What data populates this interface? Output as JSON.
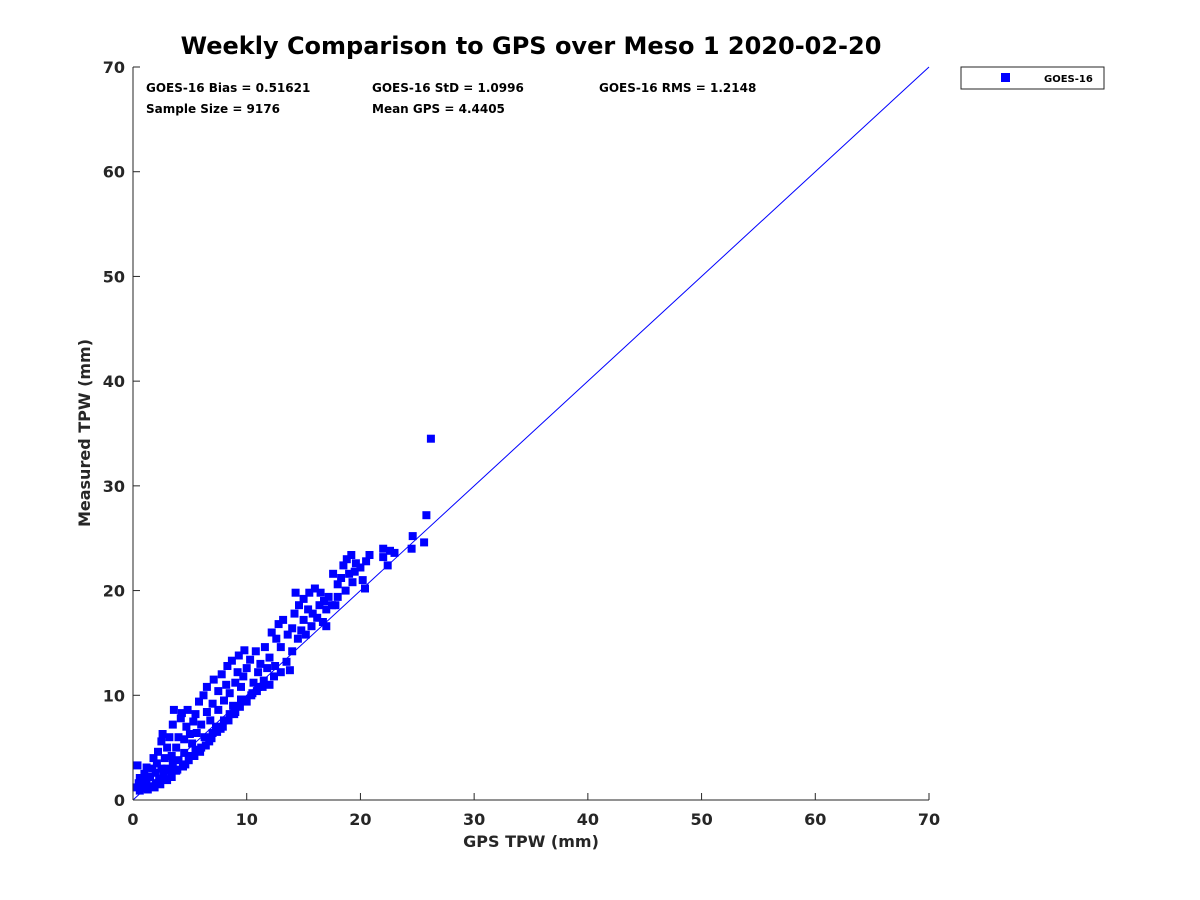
{
  "colors": {
    "marker": "#0000ff",
    "one_to_one_line": "#0000ff",
    "axis": "#262626",
    "background": "#ffffff"
  },
  "chart_data": {
    "type": "scatter",
    "title": "Weekly Comparison to GPS over Meso 1 2020-02-20",
    "xlabel": "GPS TPW (mm)",
    "ylabel": "Measured TPW (mm)",
    "xlim": [
      0,
      70
    ],
    "ylim": [
      0,
      70
    ],
    "xticks": [
      0,
      10,
      20,
      30,
      40,
      50,
      60,
      70
    ],
    "yticks": [
      0,
      10,
      20,
      30,
      40,
      50,
      60,
      70
    ],
    "grid": false,
    "legend_position": "outside-top-right",
    "reference_line": {
      "name": "1:1 line",
      "x": [
        0,
        70
      ],
      "y": [
        0,
        70
      ]
    },
    "stats": {
      "bias": "GOES-16 Bias = 0.51621",
      "std": "GOES-16 StD = 1.0996",
      "rms": "GOES-16 RMS = 1.2148",
      "sample_size": "Sample Size = 9176",
      "mean_gps": "Mean GPS = 4.4405"
    },
    "series": [
      {
        "name": "GOES-16",
        "marker": "square",
        "points": [
          [
            0.3,
            1.2
          ],
          [
            0.5,
            1.6
          ],
          [
            0.6,
            2.1
          ],
          [
            0.8,
            1.4
          ],
          [
            1.0,
            1.1
          ],
          [
            1.0,
            2.5
          ],
          [
            1.2,
            1.8
          ],
          [
            1.2,
            3.1
          ],
          [
            0.4,
            3.3
          ],
          [
            1.5,
            2.2
          ],
          [
            1.6,
            1.3
          ],
          [
            1.7,
            3.0
          ],
          [
            1.8,
            4.0
          ],
          [
            2.0,
            1.6
          ],
          [
            2.0,
            2.6
          ],
          [
            2.1,
            3.5
          ],
          [
            2.2,
            4.6
          ],
          [
            2.3,
            1.9
          ],
          [
            2.5,
            3.0
          ],
          [
            2.5,
            5.6
          ],
          [
            2.6,
            6.3
          ],
          [
            2.7,
            2.5
          ],
          [
            2.8,
            4.0
          ],
          [
            3.0,
            1.9
          ],
          [
            3.0,
            3.0
          ],
          [
            3.0,
            5.0
          ],
          [
            3.2,
            6.0
          ],
          [
            3.3,
            2.8
          ],
          [
            3.4,
            4.2
          ],
          [
            3.5,
            3.5
          ],
          [
            3.5,
            7.2
          ],
          [
            3.6,
            8.6
          ],
          [
            3.8,
            2.8
          ],
          [
            3.8,
            5.0
          ],
          [
            4.0,
            3.8
          ],
          [
            4.0,
            6.0
          ],
          [
            4.2,
            7.8
          ],
          [
            4.3,
            8.3
          ],
          [
            4.5,
            4.5
          ],
          [
            4.5,
            5.8
          ],
          [
            4.6,
            3.4
          ],
          [
            4.7,
            7.0
          ],
          [
            4.8,
            8.6
          ],
          [
            5.0,
            4.2
          ],
          [
            5.0,
            6.3
          ],
          [
            5.2,
            5.4
          ],
          [
            5.3,
            7.5
          ],
          [
            5.5,
            4.8
          ],
          [
            5.5,
            8.2
          ],
          [
            5.6,
            6.4
          ],
          [
            5.8,
            9.4
          ],
          [
            6.0,
            5.0
          ],
          [
            6.0,
            7.2
          ],
          [
            6.2,
            10.0
          ],
          [
            6.3,
            6.0
          ],
          [
            6.5,
            8.4
          ],
          [
            6.5,
            10.8
          ],
          [
            6.7,
            5.6
          ],
          [
            6.8,
            7.6
          ],
          [
            7.0,
            6.4
          ],
          [
            7.0,
            9.2
          ],
          [
            7.1,
            11.5
          ],
          [
            7.3,
            7.0
          ],
          [
            7.5,
            8.6
          ],
          [
            7.5,
            10.4
          ],
          [
            7.7,
            6.8
          ],
          [
            7.8,
            12.0
          ],
          [
            8.0,
            7.6
          ],
          [
            8.0,
            9.5
          ],
          [
            8.2,
            11.0
          ],
          [
            8.3,
            12.8
          ],
          [
            8.5,
            8.2
          ],
          [
            8.5,
            10.2
          ],
          [
            8.7,
            13.3
          ],
          [
            8.8,
            9.0
          ],
          [
            9.0,
            8.4
          ],
          [
            9.0,
            11.2
          ],
          [
            9.2,
            12.2
          ],
          [
            9.3,
            13.8
          ],
          [
            9.5,
            9.6
          ],
          [
            9.5,
            10.8
          ],
          [
            9.7,
            11.8
          ],
          [
            9.8,
            14.3
          ],
          [
            10.0,
            9.4
          ],
          [
            10.0,
            12.6
          ],
          [
            10.3,
            13.4
          ],
          [
            10.5,
            10.2
          ],
          [
            10.6,
            11.2
          ],
          [
            10.8,
            14.2
          ],
          [
            11.0,
            10.8
          ],
          [
            11.0,
            12.2
          ],
          [
            11.2,
            13.0
          ],
          [
            11.5,
            11.4
          ],
          [
            11.6,
            14.6
          ],
          [
            11.8,
            12.6
          ],
          [
            12.0,
            11.0
          ],
          [
            12.0,
            13.6
          ],
          [
            12.2,
            16.0
          ],
          [
            12.4,
            11.8
          ],
          [
            12.5,
            12.8
          ],
          [
            12.6,
            15.4
          ],
          [
            12.8,
            16.8
          ],
          [
            13.0,
            12.2
          ],
          [
            13.0,
            14.6
          ],
          [
            13.2,
            17.2
          ],
          [
            13.5,
            13.2
          ],
          [
            13.6,
            15.8
          ],
          [
            13.8,
            12.4
          ],
          [
            14.0,
            14.2
          ],
          [
            14.0,
            16.4
          ],
          [
            14.2,
            17.8
          ],
          [
            14.3,
            19.8
          ],
          [
            14.5,
            15.4
          ],
          [
            14.6,
            18.6
          ],
          [
            14.8,
            16.2
          ],
          [
            15.0,
            17.2
          ],
          [
            15.0,
            19.2
          ],
          [
            15.2,
            15.8
          ],
          [
            15.4,
            18.2
          ],
          [
            15.5,
            19.8
          ],
          [
            15.7,
            16.6
          ],
          [
            15.8,
            17.8
          ],
          [
            16.0,
            20.2
          ],
          [
            16.2,
            17.4
          ],
          [
            16.4,
            18.6
          ],
          [
            16.5,
            19.8
          ],
          [
            16.7,
            17.0
          ],
          [
            16.8,
            19.0
          ],
          [
            17.0,
            16.6
          ],
          [
            17.0,
            18.2
          ],
          [
            17.2,
            19.4
          ],
          [
            17.5,
            18.6
          ],
          [
            17.6,
            21.6
          ],
          [
            17.8,
            18.6
          ],
          [
            18.0,
            19.4
          ],
          [
            18.0,
            20.6
          ],
          [
            18.3,
            21.2
          ],
          [
            18.5,
            22.4
          ],
          [
            18.7,
            20.0
          ],
          [
            18.8,
            23.0
          ],
          [
            19.0,
            21.6
          ],
          [
            19.2,
            23.4
          ],
          [
            19.3,
            20.8
          ],
          [
            19.5,
            21.8
          ],
          [
            19.6,
            22.6
          ],
          [
            20.0,
            22.2
          ],
          [
            20.2,
            21.0
          ],
          [
            20.4,
            20.2
          ],
          [
            20.5,
            22.8
          ],
          [
            20.8,
            23.4
          ],
          [
            22.0,
            23.2
          ],
          [
            22.0,
            24.0
          ],
          [
            22.4,
            22.4
          ],
          [
            22.6,
            23.8
          ],
          [
            23.0,
            23.6
          ],
          [
            24.5,
            24.0
          ],
          [
            24.6,
            25.2
          ],
          [
            25.6,
            24.6
          ],
          [
            25.8,
            27.2
          ],
          [
            26.2,
            34.5
          ],
          [
            0.6,
            0.9
          ],
          [
            1.3,
            1.0
          ],
          [
            1.9,
            1.2
          ],
          [
            2.4,
            1.5
          ],
          [
            2.9,
            2.0
          ],
          [
            3.4,
            2.2
          ],
          [
            3.9,
            2.9
          ],
          [
            4.4,
            3.2
          ],
          [
            4.9,
            3.8
          ],
          [
            5.4,
            4.2
          ],
          [
            5.9,
            4.6
          ],
          [
            6.4,
            5.2
          ],
          [
            6.9,
            5.9
          ],
          [
            7.4,
            6.5
          ],
          [
            7.9,
            7.0
          ],
          [
            8.4,
            7.6
          ],
          [
            8.9,
            8.2
          ],
          [
            9.4,
            8.9
          ],
          [
            9.9,
            9.6
          ],
          [
            10.4,
            10.0
          ],
          [
            10.9,
            10.4
          ],
          [
            11.4,
            10.8
          ]
        ]
      }
    ]
  }
}
